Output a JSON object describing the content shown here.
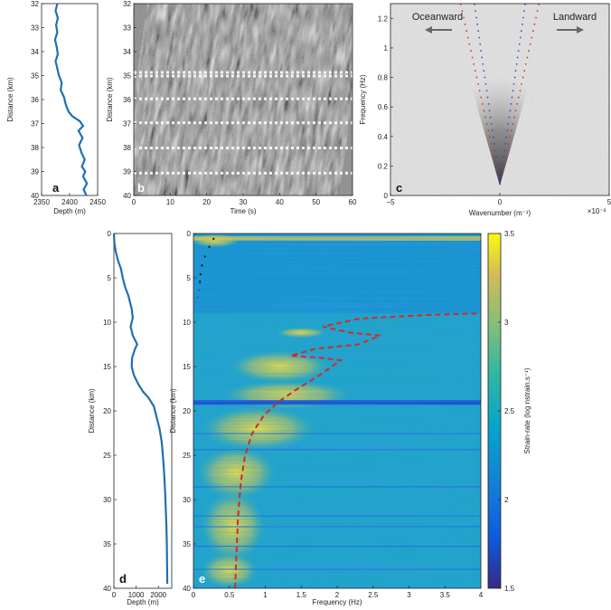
{
  "chart_data": [
    {
      "id": "a",
      "type": "line",
      "panel_label": "a",
      "xlabel": "Depth (m)",
      "ylabel": "Distance (km)",
      "xlim": [
        2350,
        2450
      ],
      "ylim": [
        32,
        40
      ],
      "y_reversed": true,
      "xticks": [
        "2350",
        "2400",
        "2450"
      ],
      "yticks": [
        "32",
        "33",
        "34",
        "35",
        "36",
        "37",
        "38",
        "39",
        "40"
      ],
      "color": "#1f6fb4",
      "series": [
        {
          "x": [
            2378,
            2375,
            2379,
            2376,
            2378,
            2374,
            2377,
            2379,
            2375,
            2378,
            2381,
            2386,
            2384,
            2390,
            2393,
            2398,
            2405,
            2418,
            2424,
            2416,
            2423,
            2417,
            2421,
            2427,
            2422,
            2428,
            2424,
            2431,
            2425,
            2430
          ],
          "y": [
            32.0,
            32.3,
            32.6,
            32.9,
            33.2,
            33.5,
            33.8,
            34.1,
            34.4,
            34.7,
            35.0,
            35.3,
            35.6,
            35.9,
            36.2,
            36.5,
            36.7,
            36.9,
            37.1,
            37.3,
            37.6,
            37.9,
            38.2,
            38.5,
            38.8,
            39.0,
            39.2,
            39.5,
            39.75,
            40.0
          ]
        }
      ]
    },
    {
      "id": "b",
      "type": "heatmap",
      "panel_label": "b",
      "xlabel": "Time (s)",
      "ylabel": "Distance (km)",
      "xlim": [
        0,
        60
      ],
      "ylim": [
        32,
        40
      ],
      "y_reversed": true,
      "xticks": [
        "0",
        "10",
        "20",
        "30",
        "40",
        "50",
        "60"
      ],
      "yticks": [
        "32",
        "33",
        "34",
        "35",
        "36",
        "37",
        "38",
        "39",
        "40"
      ],
      "colormap": "gray"
    },
    {
      "id": "c",
      "type": "heatmap",
      "panel_label": "c",
      "xlabel": "Wavenumber (m⁻¹)",
      "ylabel": "Frequency (Hz)",
      "xlim": [
        -5,
        5
      ],
      "x_scale_label": "×10⁻³",
      "ylim": [
        0,
        1.3
      ],
      "xticks": [
        "−5",
        "0",
        "5"
      ],
      "yticks": [
        "0",
        "0.2",
        "0.4",
        "0.6",
        "0.8",
        "1",
        "1.2"
      ],
      "annotations": [
        "Oceanward",
        "Landward"
      ],
      "colormap": "gray",
      "dispersion_curves": [
        {
          "color": "#d23232",
          "slope_hz_per_1e3_inv_m": 0.68,
          "intercept_hz": 0.08
        },
        {
          "color": "#3a48c4",
          "slope_hz_per_1e3_inv_m": 1.05,
          "intercept_hz": 0.08
        }
      ]
    },
    {
      "id": "d",
      "type": "line",
      "panel_label": "d",
      "xlabel": "Depth (m)",
      "ylabel": "Distance (km)",
      "xlim": [
        0,
        2600
      ],
      "ylim": [
        0,
        40
      ],
      "y_reversed": true,
      "xticks": [
        "0",
        "1000",
        "2000"
      ],
      "yticks": [
        "0",
        "5",
        "10",
        "15",
        "20",
        "25",
        "30",
        "35",
        "40"
      ],
      "color": "#1f6fb4",
      "series": [
        {
          "x": [
            2,
            20,
            80,
            180,
            320,
            400,
            500,
            650,
            800,
            850,
            750,
            850,
            950,
            1050,
            950,
            820,
            800,
            900,
            1100,
            1300,
            1550,
            1800,
            1950,
            2050,
            2150,
            2200,
            2260,
            2300,
            2330,
            2360,
            2380,
            2390,
            2400
          ],
          "y": [
            0,
            1,
            2,
            3,
            4,
            5,
            6,
            7,
            8.5,
            9.5,
            10.5,
            11.5,
            12,
            12.5,
            13,
            14,
            15,
            16,
            17,
            17.8,
            18.5,
            19.5,
            21,
            22,
            23.5,
            25,
            27,
            29,
            31,
            33,
            35,
            37,
            39.5
          ]
        }
      ]
    },
    {
      "id": "e",
      "type": "heatmap",
      "panel_label": "e",
      "xlabel": "Frequency (Hz)",
      "ylabel": "Distance (km)",
      "xlim": [
        0,
        4
      ],
      "ylim": [
        0,
        40
      ],
      "y_reversed": true,
      "xticks": [
        "0",
        "0.5",
        "1",
        "1.5",
        "2",
        "2.5",
        "3",
        "3.5",
        "4"
      ],
      "yticks": [
        "0",
        "5",
        "10",
        "15",
        "20",
        "25",
        "30",
        "35",
        "40"
      ],
      "colorbar_label": "Strain-rate (log nstrain.s⁻¹)",
      "colorbar_range": [
        1.5,
        3.5
      ],
      "colorbar_ticks": [
        "1.5",
        "2",
        "2.5",
        "3",
        "3.5"
      ],
      "colormap": "parula",
      "dashed_curve": {
        "color": "#d22a2a",
        "x": [
          0.58,
          0.6,
          0.62,
          0.66,
          0.72,
          0.82,
          0.98,
          1.18,
          1.45,
          1.75,
          2.05,
          1.75,
          1.35,
          1.7,
          2.3,
          2.6,
          2.2,
          1.8,
          2.3,
          3.2,
          4.0
        ],
        "y": [
          40,
          36,
          32,
          28,
          25,
          22.5,
          20.5,
          19,
          17.5,
          16,
          14.3,
          14,
          13.8,
          13,
          12.5,
          11.5,
          11.2,
          10.5,
          9.6,
          9.2,
          9.0
        ]
      },
      "dotted_curves": [
        {
          "color": "#111111",
          "x": [
            0.28,
            0.22,
            0.16,
            0.12,
            0.1,
            0.09
          ],
          "y": [
            0.6,
            1.5,
            2.6,
            3.6,
            4.6,
            5.4
          ]
        },
        {
          "color": "#2b4fd8",
          "x": [
            0.09,
            0.08,
            0.06
          ],
          "y": [
            5.6,
            6.4,
            7.2
          ]
        }
      ]
    }
  ]
}
